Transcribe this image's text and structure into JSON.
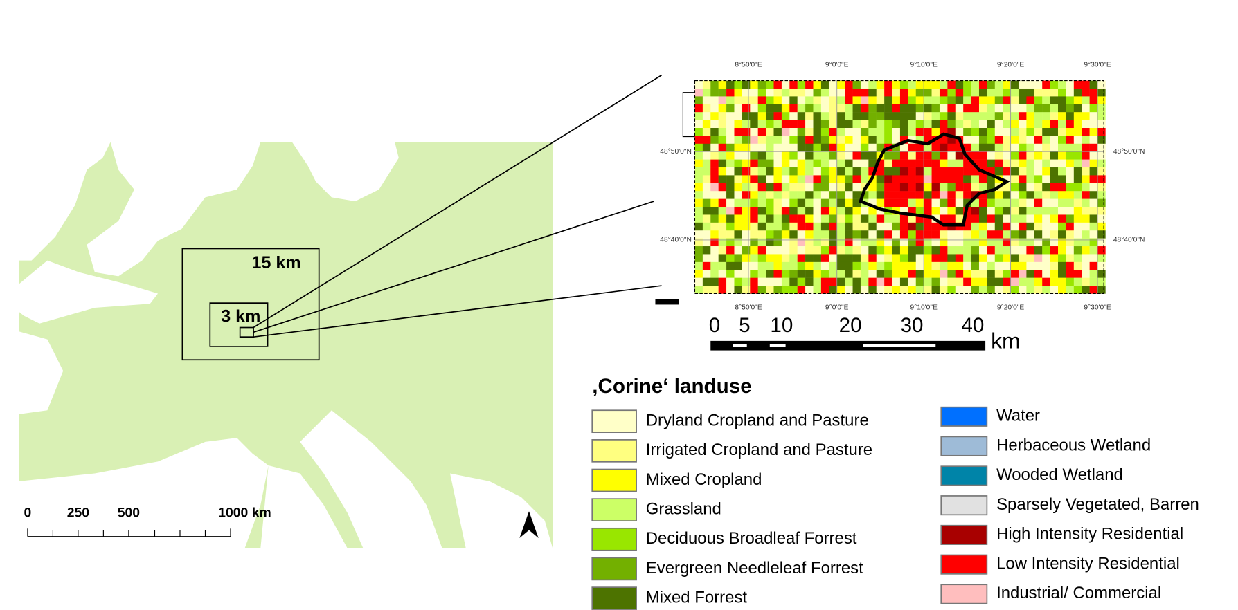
{
  "overview_map": {
    "box_labels": [
      "15 km",
      "3 km"
    ],
    "scale_bar": {
      "labels": [
        "0",
        "250",
        "500",
        "1000 km"
      ]
    }
  },
  "detail_map": {
    "top_labels": [
      "8°50'0\"E",
      "9°0'0\"E",
      "9°10'0\"E",
      "9°20'0\"E",
      "9°30'0\"E"
    ],
    "bottom_labels": [
      "8°50'0\"E",
      "9°0'0\"E",
      "9°10'0\"E",
      "9°20'0\"E",
      "9°30'0\"E"
    ],
    "left_labels": [
      "48°50'0\"N",
      "48°40'0\"N"
    ],
    "right_labels": [
      "48°50'0\"N",
      "48°40'0\"N"
    ],
    "scale_bar": {
      "labels": [
        "0",
        "5",
        "10",
        "20",
        "30",
        "40"
      ],
      "unit": "km"
    }
  },
  "legend": {
    "title": ",Corine‘ landuse",
    "items": [
      {
        "label": "Dryland Cropland and Pasture",
        "color": "#ffffc8"
      },
      {
        "label": "Irrigated Cropland and Pasture",
        "color": "#ffff80"
      },
      {
        "label": "Mixed Cropland",
        "color": "#ffff00"
      },
      {
        "label": "Grassland",
        "color": "#ccff66"
      },
      {
        "label": "Deciduous Broadleaf Forrest",
        "color": "#99e600"
      },
      {
        "label": "Evergreen Needleleaf Forrest",
        "color": "#73b000"
      },
      {
        "label": "Mixed Forrest",
        "color": "#4d7300"
      },
      {
        "label": "Water",
        "color": "#0070ff"
      },
      {
        "label": "Herbaceous Wetland",
        "color": "#9ebbd7"
      },
      {
        "label": "Wooded Wetland",
        "color": "#0084a8"
      },
      {
        "label": "Sparsely Vegetated, Barren",
        "color": "#e1e1e1"
      },
      {
        "label": "High Intensity Residential",
        "color": "#a80000"
      },
      {
        "label": "Low  Intensity Residential",
        "color": "#ff0000"
      },
      {
        "label": "Industrial/ Commercial",
        "color": "#ffbebe"
      }
    ]
  }
}
